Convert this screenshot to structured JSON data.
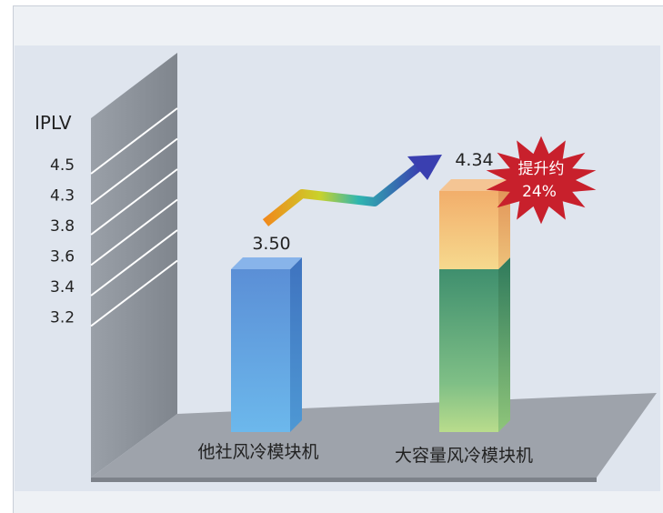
{
  "chart_data": {
    "type": "bar",
    "ylabel": "IPLV",
    "y_ticks": [
      "4.5",
      "4.3",
      "3.8",
      "3.6",
      "3.4",
      "3.2"
    ],
    "categories": [
      "他社风冷模块机",
      "大容量风冷模块机"
    ],
    "values": [
      3.5,
      4.34
    ],
    "value_labels": [
      "3.50",
      "4.34"
    ],
    "base_value": 3.5,
    "callout": {
      "lines": [
        "提升约",
        "24%"
      ],
      "color": "#c8202c"
    },
    "colors": {
      "bar_other": "#5f97d6",
      "bar_large_base": "#4fa37a",
      "bar_large_increase": "#f0a860",
      "wall": "#8b8f96",
      "floor": "#9ea3ab",
      "background": "#dfe5ee"
    }
  }
}
